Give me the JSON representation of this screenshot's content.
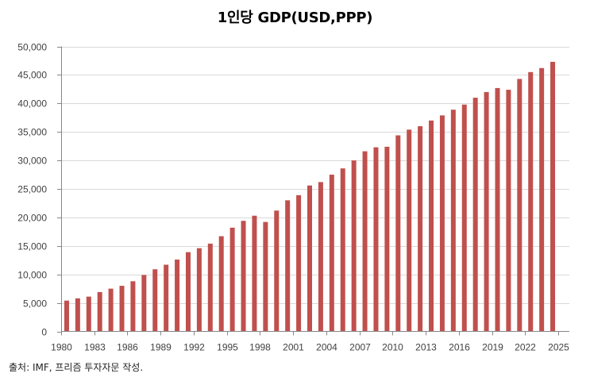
{
  "chart_data": {
    "type": "bar",
    "title": "1인당 GDP(USD,PPP)",
    "xlabel": "",
    "ylabel": "",
    "ylim": [
      0,
      50000
    ],
    "xlim": [
      1980,
      2025
    ],
    "y_ticks": [
      0,
      5000,
      10000,
      15000,
      20000,
      25000,
      30000,
      35000,
      40000,
      45000,
      50000
    ],
    "y_tick_labels": [
      "0",
      "5,000",
      "10,000",
      "15,000",
      "20,000",
      "25,000",
      "30,000",
      "35,000",
      "40,000",
      "45,000",
      "50,000"
    ],
    "x_ticks": [
      1980,
      1983,
      1986,
      1989,
      1992,
      1995,
      1998,
      2001,
      2004,
      2007,
      2010,
      2013,
      2016,
      2019,
      2022,
      2025
    ],
    "x_tick_labels": [
      "1980",
      "1983",
      "1986",
      "1989",
      "1992",
      "1995",
      "1998",
      "2001",
      "2004",
      "2007",
      "2010",
      "2013",
      "2016",
      "2019",
      "2022",
      "2025"
    ],
    "grid": "horizontal",
    "legend": "none",
    "bar_color": "#C0504D",
    "categories": [
      1980,
      1981,
      1982,
      1983,
      1984,
      1985,
      1986,
      1987,
      1988,
      1989,
      1990,
      1991,
      1992,
      1993,
      1994,
      1995,
      1996,
      1997,
      1998,
      1999,
      2000,
      2001,
      2002,
      2003,
      2004,
      2005,
      2006,
      2007,
      2008,
      2009,
      2010,
      2011,
      2012,
      2013,
      2014,
      2015,
      2016,
      2017,
      2018,
      2019,
      2020,
      2021,
      2022,
      2023,
      2024
    ],
    "series": [
      {
        "name": "1인당 GDP(USD,PPP)",
        "values": [
          5400,
          5800,
          6100,
          6900,
          7500,
          8000,
          8800,
          9900,
          10900,
          11700,
          12600,
          13900,
          14600,
          15400,
          16700,
          18200,
          19400,
          20300,
          19200,
          21200,
          23000,
          23900,
          25600,
          26200,
          27500,
          28600,
          30000,
          31600,
          32300,
          32400,
          34400,
          35400,
          36000,
          37000,
          37900,
          38900,
          39800,
          41000,
          42000,
          42700,
          42400,
          44300,
          45500,
          46200,
          47300
        ]
      }
    ]
  },
  "source_note": "출처: IMF, 프리즘 투자자문 작성."
}
